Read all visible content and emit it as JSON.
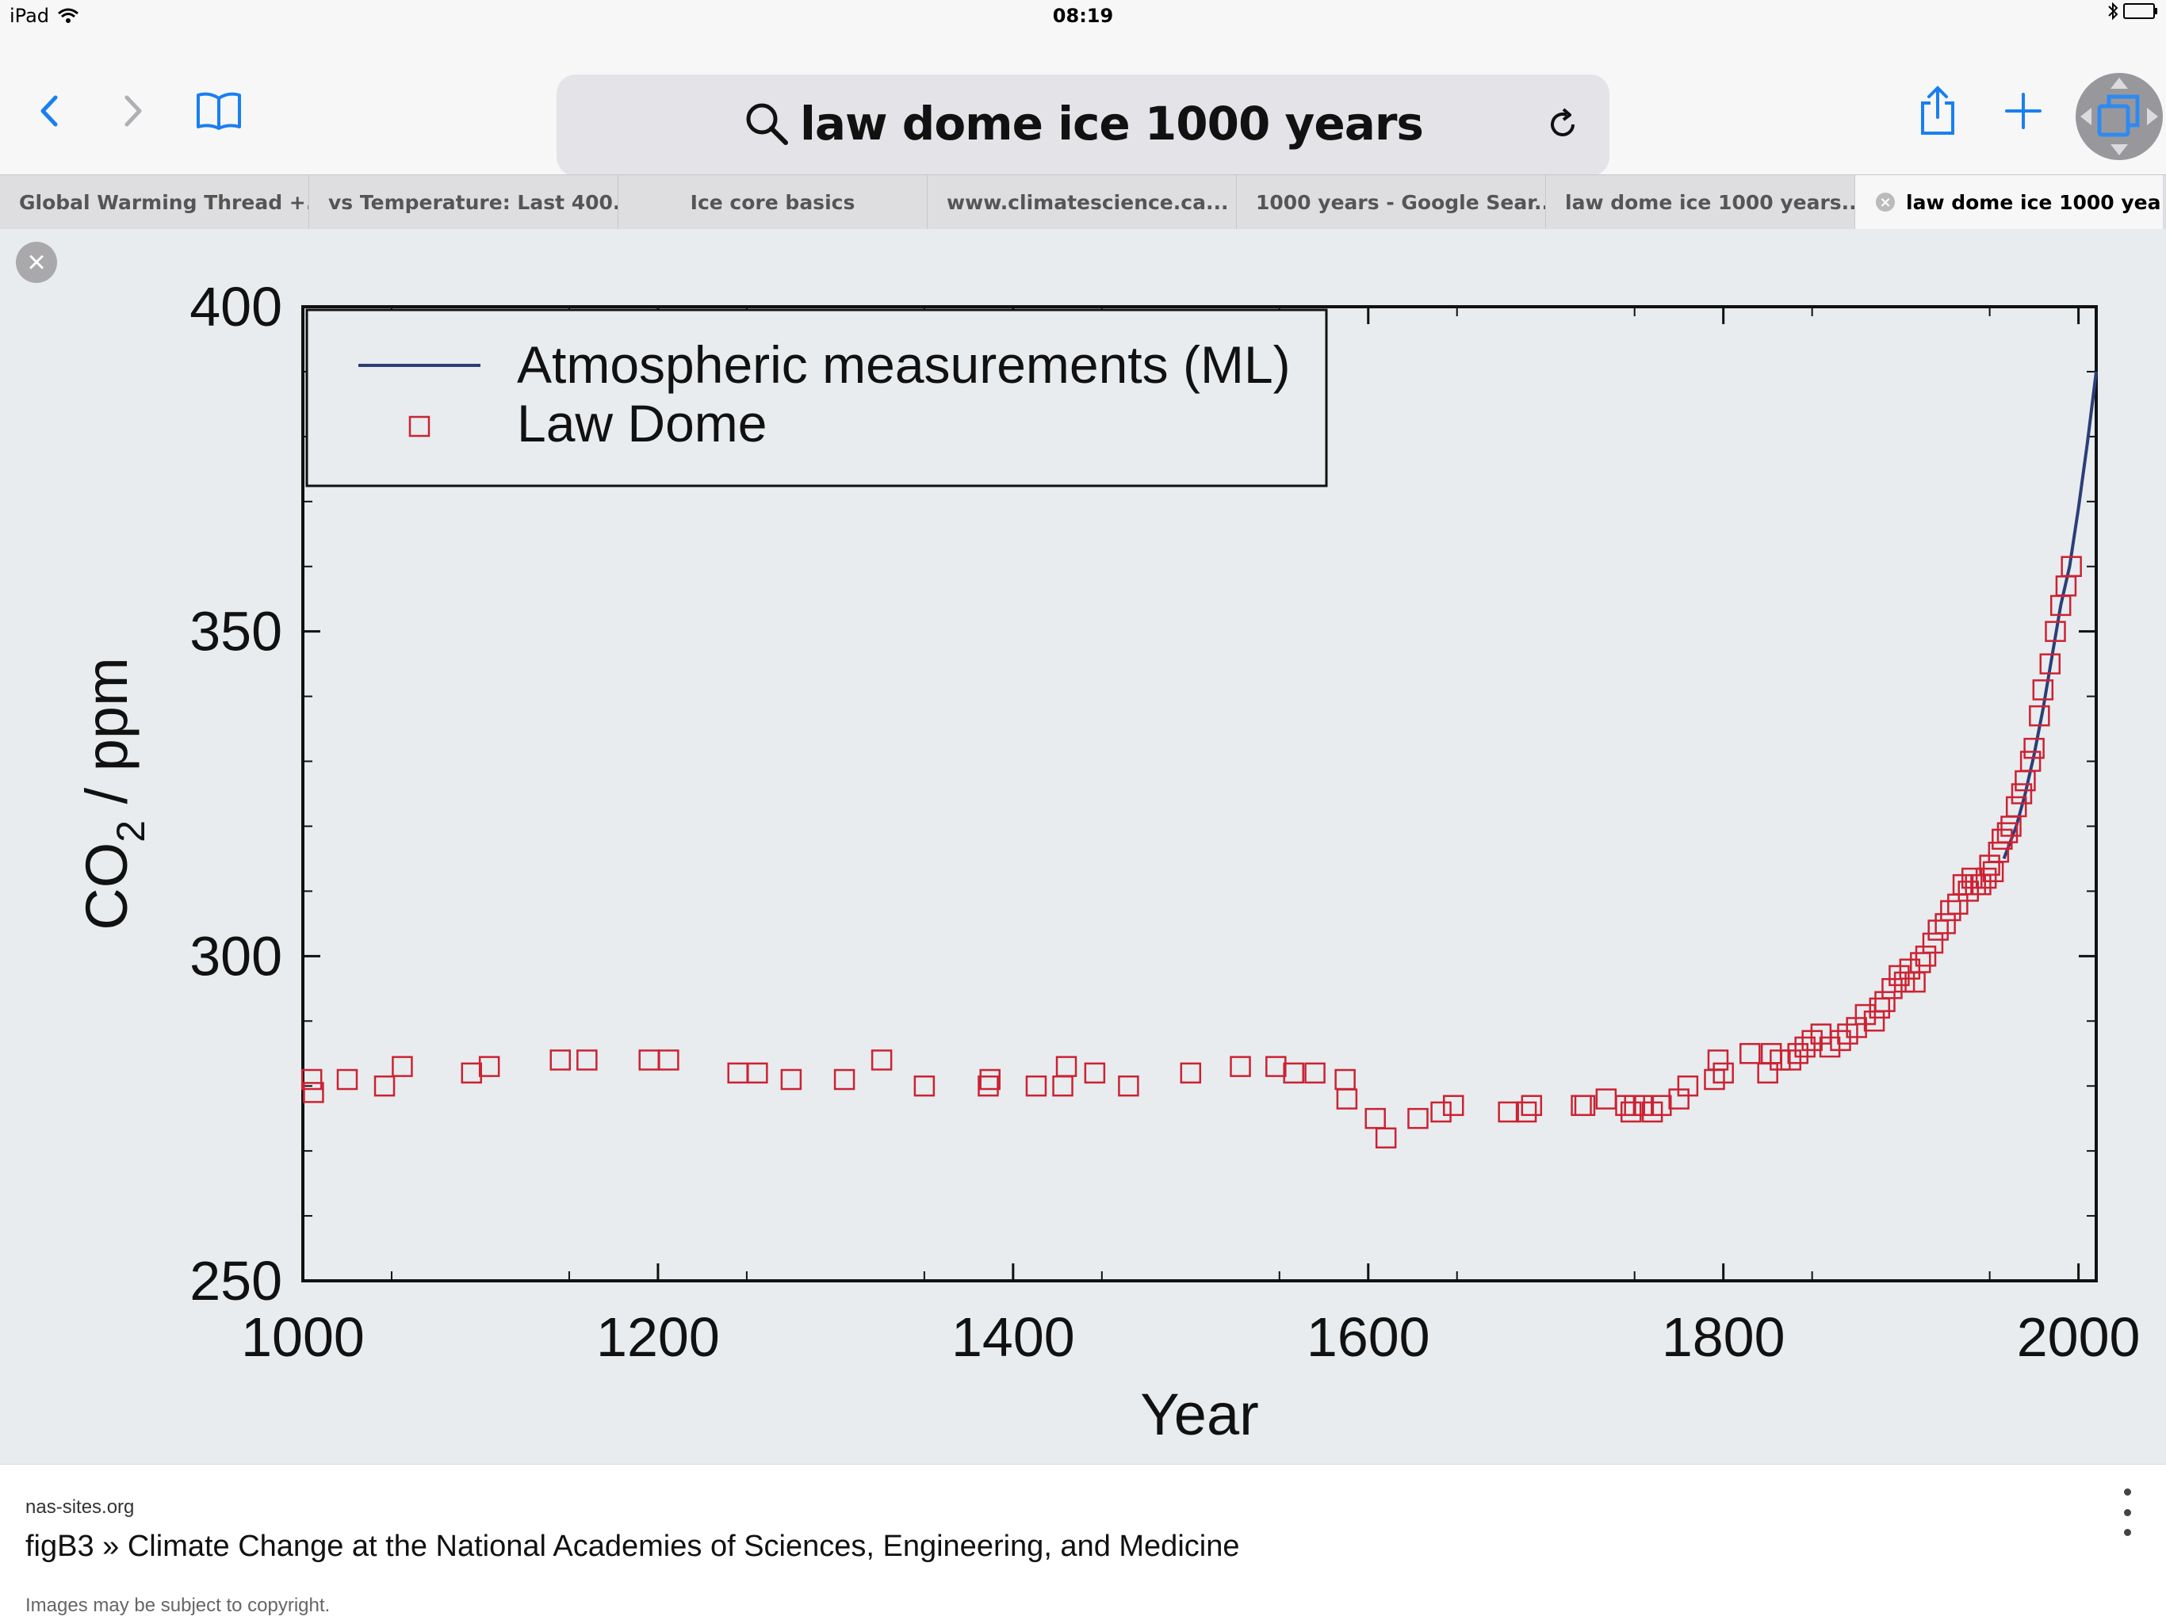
{
  "status": {
    "device": "iPad",
    "time": "08:19"
  },
  "browser": {
    "query": "law dome ice 1000 years",
    "accent": "#1a7ff0",
    "icons": [
      "back-icon",
      "forward-icon",
      "bookmarks-icon",
      "search-icon",
      "reload-icon",
      "share-icon",
      "add-tab-icon",
      "tabs-icon"
    ]
  },
  "tabs": [
    {
      "label": "Global Warming Thread +..."
    },
    {
      "label": "vs Temperature: Last 400..."
    },
    {
      "label": "Ice core basics"
    },
    {
      "label": "www.climatescience.ca..."
    },
    {
      "label": "1000 years - Google Sear..."
    },
    {
      "label": "law dome ice 1000 years..."
    },
    {
      "label": "law dome ice 1000 yea..."
    }
  ],
  "chart_data": {
    "type": "scatter",
    "xlabel": "Year",
    "ylabel": "CO2 / ppm",
    "ylabel_main": "CO",
    "ylabel_sub": "2",
    "ylabel_tail": " / ppm",
    "xlim": [
      1000,
      2010
    ],
    "ylim": [
      250,
      400
    ],
    "xticks": [
      1000,
      1200,
      1400,
      1600,
      1800,
      2000
    ],
    "yticks": [
      250,
      300,
      350,
      400
    ],
    "legend_position": "top-left",
    "series": [
      {
        "name": "Atmospheric measurements (ML)",
        "kind": "line",
        "color": "#2c3e7a",
        "x": [
          1958,
          1965,
          1970,
          1975,
          1980,
          1985,
          1990,
          1995,
          2000,
          2005,
          2010
        ],
        "y": [
          315,
          320,
          325,
          331,
          338,
          346,
          354,
          360,
          369,
          379,
          390
        ]
      },
      {
        "name": "Law Dome",
        "kind": "scatter",
        "color": "#cc2233",
        "x": [
          1005,
          1006,
          1025,
          1046,
          1056,
          1095,
          1105,
          1145,
          1160,
          1195,
          1206,
          1245,
          1256,
          1275,
          1305,
          1326,
          1350,
          1386,
          1387,
          1413,
          1428,
          1430,
          1446,
          1465,
          1500,
          1528,
          1548,
          1558,
          1570,
          1587,
          1588,
          1604,
          1610,
          1628,
          1641,
          1648,
          1679,
          1689,
          1692,
          1720,
          1722,
          1734,
          1745,
          1748,
          1750,
          1755,
          1760,
          1765,
          1775,
          1780,
          1795,
          1797,
          1800,
          1815,
          1825,
          1827,
          1832,
          1838,
          1842,
          1846,
          1850,
          1855,
          1860,
          1866,
          1870,
          1875,
          1880,
          1885,
          1888,
          1891,
          1895,
          1899,
          1902,
          1905,
          1908,
          1911,
          1914,
          1918,
          1921,
          1925,
          1928,
          1932,
          1935,
          1938,
          1940,
          1942,
          1945,
          1948,
          1950,
          1952,
          1955,
          1957,
          1960,
          1962,
          1965,
          1968,
          1970,
          1973,
          1975,
          1978,
          1980,
          1984,
          1987,
          1990,
          1993,
          1996
        ],
        "y": [
          281,
          279,
          281,
          280,
          283,
          282,
          283,
          284,
          284,
          284,
          284,
          282,
          282,
          281,
          281,
          284,
          280,
          280,
          281,
          280,
          280,
          283,
          282,
          280,
          282,
          283,
          283,
          282,
          282,
          281,
          278,
          275,
          272,
          275,
          276,
          277,
          276,
          276,
          277,
          277,
          277,
          278,
          277,
          276,
          277,
          277,
          276,
          277,
          278,
          280,
          281,
          284,
          282,
          285,
          282,
          285,
          284,
          284,
          285,
          286,
          287,
          288,
          286,
          287,
          288,
          289,
          291,
          290,
          292,
          293,
          295,
          297,
          296,
          298,
          296,
          299,
          300,
          302,
          304,
          305,
          307,
          308,
          311,
          310,
          312,
          311,
          311,
          312,
          314,
          313,
          316,
          318,
          319,
          320,
          323,
          325,
          327,
          330,
          332,
          337,
          341,
          345,
          350,
          354,
          357,
          360
        ]
      }
    ]
  },
  "source": {
    "domain": "nas-sites.org",
    "title": "figB3 » Climate Change at the National Academies of Sciences, Engineering, and Medicine",
    "copyright": "Images may be subject to copyright."
  }
}
